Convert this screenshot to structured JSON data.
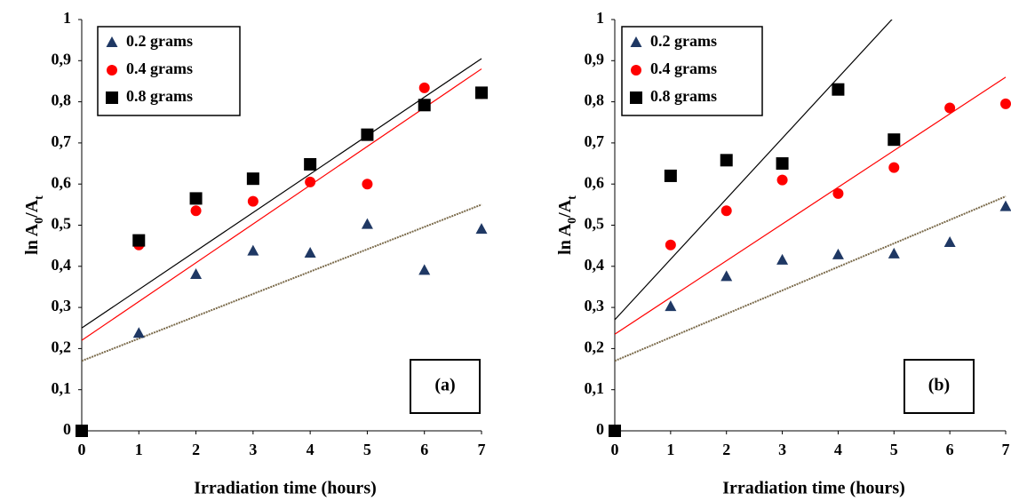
{
  "chart_data": [
    {
      "type": "scatter",
      "panel_label": "(a)",
      "xlabel": "Irradiation time (hours)",
      "ylabel": [
        "ln A",
        "0",
        "/A",
        "t"
      ],
      "xlim": [
        0,
        7
      ],
      "xticks": [
        0,
        1,
        2,
        3,
        4,
        5,
        6,
        7
      ],
      "ylim": [
        0,
        1
      ],
      "yticks": [
        0,
        {
          "value": 0.1,
          "label": "0,1"
        },
        {
          "value": 0.2,
          "label": "0,2"
        },
        {
          "value": 0.3,
          "label": "0,3"
        },
        {
          "value": 0.4,
          "label": "0,4"
        },
        {
          "value": 0.5,
          "label": "0,5"
        },
        {
          "value": 0.6,
          "label": "0,6"
        },
        {
          "value": 0.7,
          "label": "0,7"
        },
        {
          "value": 0.8,
          "label": "0,8"
        },
        {
          "value": 0.9,
          "label": "0,9"
        },
        1
      ],
      "legend": "top-left",
      "trend_x": [
        0,
        7
      ],
      "series": [
        {
          "name": "0.2 grams",
          "marker": "triangle",
          "color": "#1f3864",
          "trend_color": "#7a6a4a",
          "x": [
            0,
            1,
            2,
            3,
            4,
            5,
            6,
            7
          ],
          "values": [
            0,
            0.237,
            0.38,
            0.437,
            0.432,
            0.502,
            0.39,
            0.49
          ],
          "trend": [
            0.17,
            0.55
          ]
        },
        {
          "name": "0.4 grams",
          "marker": "circle",
          "color": "#ff0000",
          "trend_color": "#ff0000",
          "x": [
            0,
            1,
            2,
            3,
            4,
            5,
            6,
            7
          ],
          "values": [
            0,
            0.452,
            0.535,
            0.558,
            0.605,
            0.6,
            0.834,
            0.82
          ],
          "trend": [
            0.22,
            0.88
          ]
        },
        {
          "name": "0.8 grams",
          "marker": "square",
          "color": "#000000",
          "trend_color": "#000000",
          "x": [
            0,
            1,
            2,
            3,
            4,
            5,
            6,
            7
          ],
          "values": [
            0,
            0.463,
            0.565,
            0.613,
            0.648,
            0.72,
            0.792,
            0.822
          ],
          "trend": [
            0.25,
            0.905
          ]
        }
      ]
    },
    {
      "type": "scatter",
      "panel_label": "(b)",
      "xlabel": "Irradiation time (hours)",
      "ylabel": [
        "ln A",
        "0",
        "/A",
        "t"
      ],
      "xlim": [
        0,
        7
      ],
      "xticks": [
        0,
        1,
        2,
        3,
        4,
        5,
        6,
        7
      ],
      "ylim": [
        0,
        1
      ],
      "yticks": [
        0,
        {
          "value": 0.1,
          "label": "0,1"
        },
        {
          "value": 0.2,
          "label": "0,2"
        },
        {
          "value": 0.3,
          "label": "0,3"
        },
        {
          "value": 0.4,
          "label": "0,4"
        },
        {
          "value": 0.5,
          "label": "0,5"
        },
        {
          "value": 0.6,
          "label": "0,6"
        },
        {
          "value": 0.7,
          "label": "0,7"
        },
        {
          "value": 0.8,
          "label": "0,8"
        },
        {
          "value": 0.9,
          "label": "0,9"
        },
        1
      ],
      "legend": "top-left",
      "trend_x": [
        0,
        7
      ],
      "series": [
        {
          "name": "0.2 grams",
          "marker": "triangle",
          "color": "#1f3864",
          "trend_color": "#7a6a4a",
          "x": [
            0,
            1,
            2,
            3,
            4,
            5,
            6,
            7
          ],
          "values": [
            0,
            0.302,
            0.375,
            0.415,
            0.428,
            0.43,
            0.458,
            0.545
          ],
          "trend": [
            0.17,
            0.57
          ]
        },
        {
          "name": "0.4 grams",
          "marker": "circle",
          "color": "#ff0000",
          "trend_color": "#ff0000",
          "x": [
            0,
            1,
            2,
            3,
            4,
            5,
            6,
            7
          ],
          "values": [
            0,
            0.452,
            0.535,
            0.61,
            0.577,
            0.64,
            0.785,
            0.795
          ],
          "trend": [
            0.235,
            0.86
          ]
        },
        {
          "name": "0.8 grams",
          "marker": "square",
          "color": "#000000",
          "trend_color": "#000000",
          "x": [
            0,
            1,
            2,
            3,
            4,
            5
          ],
          "values": [
            0,
            0.62,
            0.658,
            0.65,
            0.83,
            0.708
          ],
          "trend": [
            0.27,
            1.3
          ]
        }
      ]
    }
  ]
}
